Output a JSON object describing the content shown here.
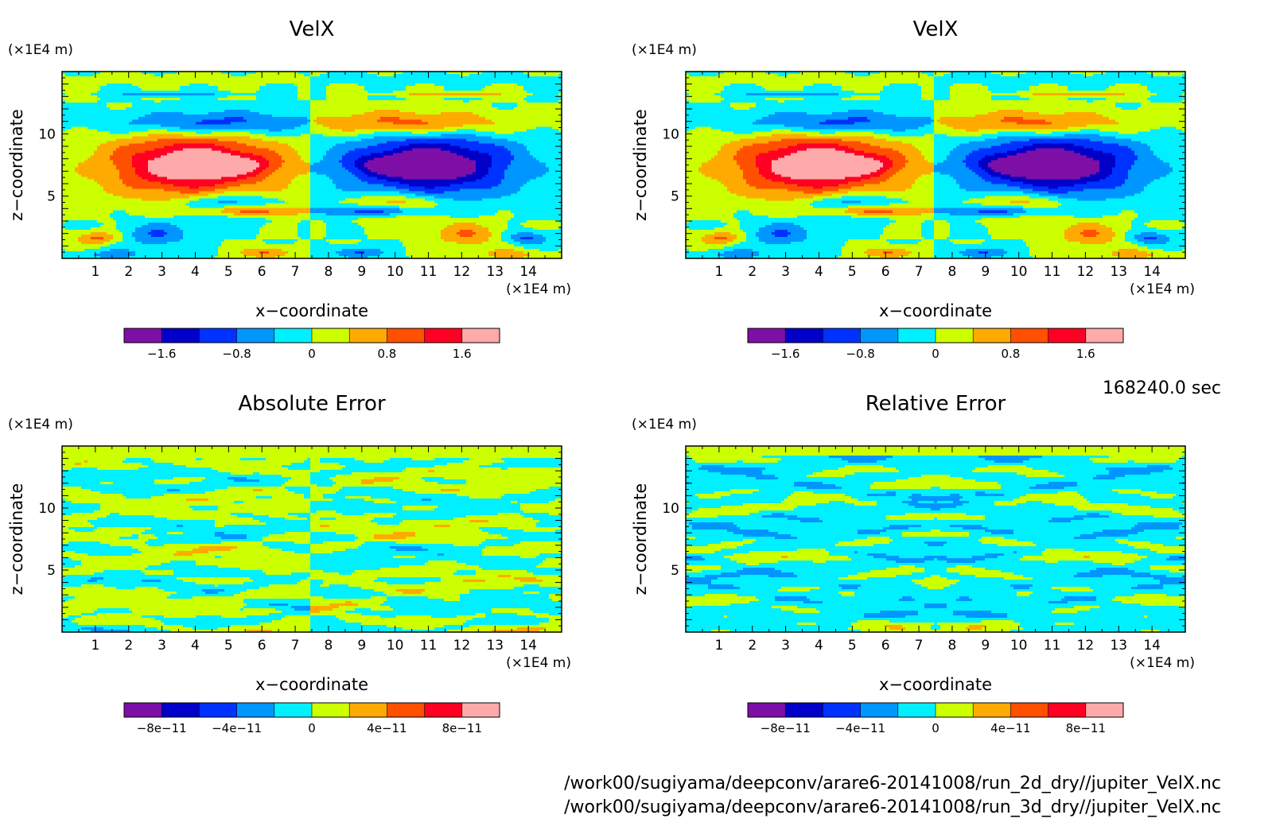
{
  "time_label": "168240.0 sec",
  "file_paths": [
    "/work00/sugiyama/deepconv/arare6-20141008/run_2d_dry//jupiter_VelX.nc",
    "/work00/sugiyama/deepconv/arare6-20141008/run_3d_dry//jupiter_VelX.nc"
  ],
  "colorbar_colors": [
    "#7e0fa6",
    "#0000c8",
    "#0032ff",
    "#0096ff",
    "#00f0ff",
    "#ccff00",
    "#ffaa00",
    "#ff5000",
    "#ff0022",
    "#ffaaaa"
  ],
  "chart_data": [
    {
      "type": "heatmap",
      "title": "VelX",
      "xlabel": "x−coordinate",
      "ylabel": "z−coordinate",
      "x_unit": "(×1E4 m)",
      "y_unit": "(×1E4 m)",
      "xlim": [
        0,
        15
      ],
      "ylim": [
        0,
        15
      ],
      "x_ticks": [
        "1",
        "2",
        "3",
        "4",
        "5",
        "6",
        "7",
        "8",
        "9",
        "10",
        "11",
        "12",
        "13",
        "14"
      ],
      "y_ticks": [
        "5",
        "10"
      ],
      "colorbar_range": [
        -2,
        2
      ],
      "colorbar_labels": [
        "−1.6",
        "−0.8",
        "0",
        "0.8",
        "1.6"
      ],
      "colorbar_label_values": [
        -1.6,
        -0.8,
        0,
        0.8,
        1.6
      ],
      "pattern": "velx"
    },
    {
      "type": "heatmap",
      "title": "VelX",
      "xlabel": "x−coordinate",
      "ylabel": "z−coordinate",
      "x_unit": "(×1E4 m)",
      "y_unit": "(×1E4 m)",
      "xlim": [
        0,
        15
      ],
      "ylim": [
        0,
        15
      ],
      "x_ticks": [
        "1",
        "2",
        "3",
        "4",
        "5",
        "6",
        "7",
        "8",
        "9",
        "10",
        "11",
        "12",
        "13",
        "14"
      ],
      "y_ticks": [
        "5",
        "10"
      ],
      "colorbar_range": [
        -2,
        2
      ],
      "colorbar_labels": [
        "−1.6",
        "−0.8",
        "0",
        "0.8",
        "1.6"
      ],
      "colorbar_label_values": [
        -1.6,
        -0.8,
        0,
        0.8,
        1.6
      ],
      "pattern": "velx"
    },
    {
      "type": "heatmap",
      "title": "Absolute Error",
      "xlabel": "x−coordinate",
      "ylabel": "z−coordinate",
      "x_unit": "(×1E4 m)",
      "y_unit": "(×1E4 m)",
      "xlim": [
        0,
        15
      ],
      "ylim": [
        0,
        15
      ],
      "x_ticks": [
        "1",
        "2",
        "3",
        "4",
        "5",
        "6",
        "7",
        "8",
        "9",
        "10",
        "11",
        "12",
        "13",
        "14"
      ],
      "y_ticks": [
        "5",
        "10"
      ],
      "colorbar_range": [
        -1e-10,
        1e-10
      ],
      "colorbar_labels": [
        "−8e−11",
        "−4e−11",
        "0",
        "4e−11",
        "8e−11"
      ],
      "colorbar_label_values": [
        -8e-11,
        -4e-11,
        0,
        4e-11,
        8e-11
      ],
      "pattern": "abserr"
    },
    {
      "type": "heatmap",
      "title": "Relative Error",
      "xlabel": "x−coordinate",
      "ylabel": "z−coordinate",
      "x_unit": "(×1E4 m)",
      "y_unit": "(×1E4 m)",
      "xlim": [
        0,
        15
      ],
      "ylim": [
        0,
        15
      ],
      "x_ticks": [
        "1",
        "2",
        "3",
        "4",
        "5",
        "6",
        "7",
        "8",
        "9",
        "10",
        "11",
        "12",
        "13",
        "14"
      ],
      "y_ticks": [
        "5",
        "10"
      ],
      "colorbar_range": [
        -1e-10,
        1e-10
      ],
      "colorbar_labels": [
        "−8e−11",
        "−4e−11",
        "0",
        "4e−11",
        "8e−11"
      ],
      "colorbar_label_values": [
        -8e-11,
        -4e-11,
        0,
        4e-11,
        8e-11
      ],
      "pattern": "relerr"
    }
  ]
}
